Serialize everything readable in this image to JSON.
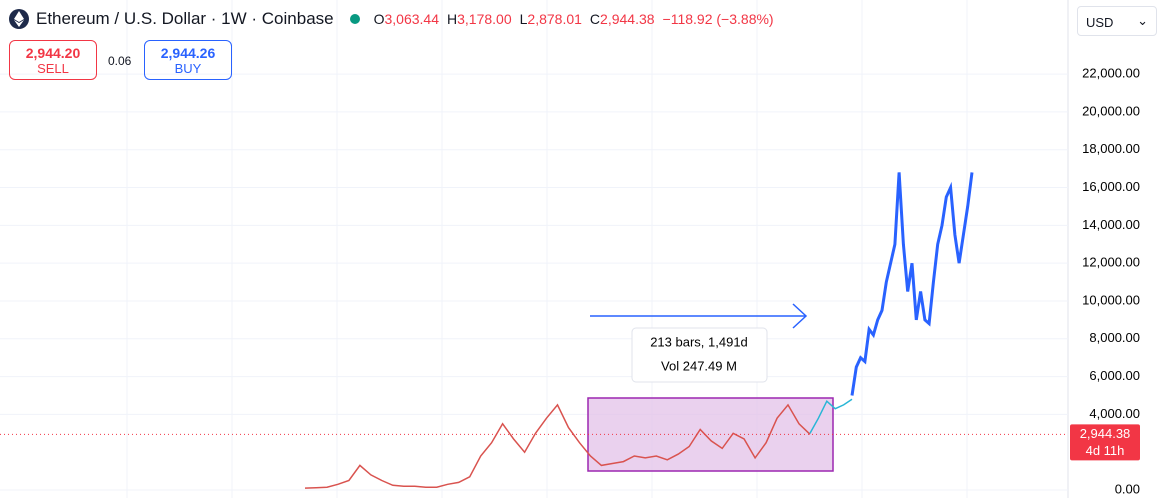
{
  "header": {
    "symbol": "Ethereum / U.S. Dollar · 1W · Coinbase",
    "ohlc": [
      {
        "key": "O",
        "value": "3,063.44"
      },
      {
        "key": "H",
        "value": "3,178.00"
      },
      {
        "key": "L",
        "value": "2,878.01"
      },
      {
        "key": "C",
        "value": "2,944.38"
      }
    ],
    "change": "−118.92 (−3.88%)"
  },
  "trade": {
    "sell_price": "2,944.20",
    "sell_label": "SELL",
    "spread": "0.06",
    "buy_price": "2,944.26",
    "buy_label": "BUY"
  },
  "currency": "USD",
  "chart_data": {
    "type": "line",
    "ylim": [
      0,
      22800
    ],
    "yticks": [
      {
        "value": 0,
        "label": "0.00"
      },
      {
        "value": 4000,
        "label": "4,000.00"
      },
      {
        "value": 6000,
        "label": "6,000.00"
      },
      {
        "value": 8000,
        "label": "8,000.00"
      },
      {
        "value": 10000,
        "label": "10,000.00"
      },
      {
        "value": 12000,
        "label": "12,000.00"
      },
      {
        "value": 14000,
        "label": "14,000.00"
      },
      {
        "value": 16000,
        "label": "16,000.00"
      },
      {
        "value": 18000,
        "label": "18,000.00"
      },
      {
        "value": 20000,
        "label": "20,000.00"
      },
      {
        "value": 22000,
        "label": "22,000.00"
      }
    ],
    "series": [
      {
        "color": "#d9534f",
        "values": [
          100,
          120,
          150,
          300,
          500,
          1300,
          800,
          500,
          250,
          200,
          200,
          150,
          150,
          300,
          400,
          700,
          1800,
          2500,
          3500,
          2700,
          2000,
          3000,
          3800,
          4500,
          3300,
          2500,
          1800,
          1300,
          1400,
          1500,
          1800,
          1700,
          1800,
          1600,
          1900,
          2300,
          3200,
          2600,
          2200,
          3000,
          2700,
          1700,
          2500,
          3800,
          4500,
          3500,
          2944
        ]
      },
      {
        "color": "#29b6d6",
        "values": [
          3000,
          3800,
          4700,
          4300,
          4500,
          4800
        ]
      },
      {
        "color": "#2962ff",
        "values": [
          5000,
          6500,
          7000,
          6800,
          8500,
          8200,
          9000,
          9500,
          11000,
          12000,
          13000,
          16800,
          13000,
          10500,
          12000,
          9000,
          10500,
          9000,
          8800,
          11000,
          13000,
          14000,
          15500,
          16000,
          13500,
          12000,
          13500,
          15000,
          16800
        ]
      }
    ],
    "last_price": {
      "value": 2944.38,
      "label": "2,944.38",
      "countdown": "4d 11h"
    },
    "annotation": {
      "bars": "213 bars, 1,491d",
      "volume": "Vol 247.49 M"
    }
  }
}
